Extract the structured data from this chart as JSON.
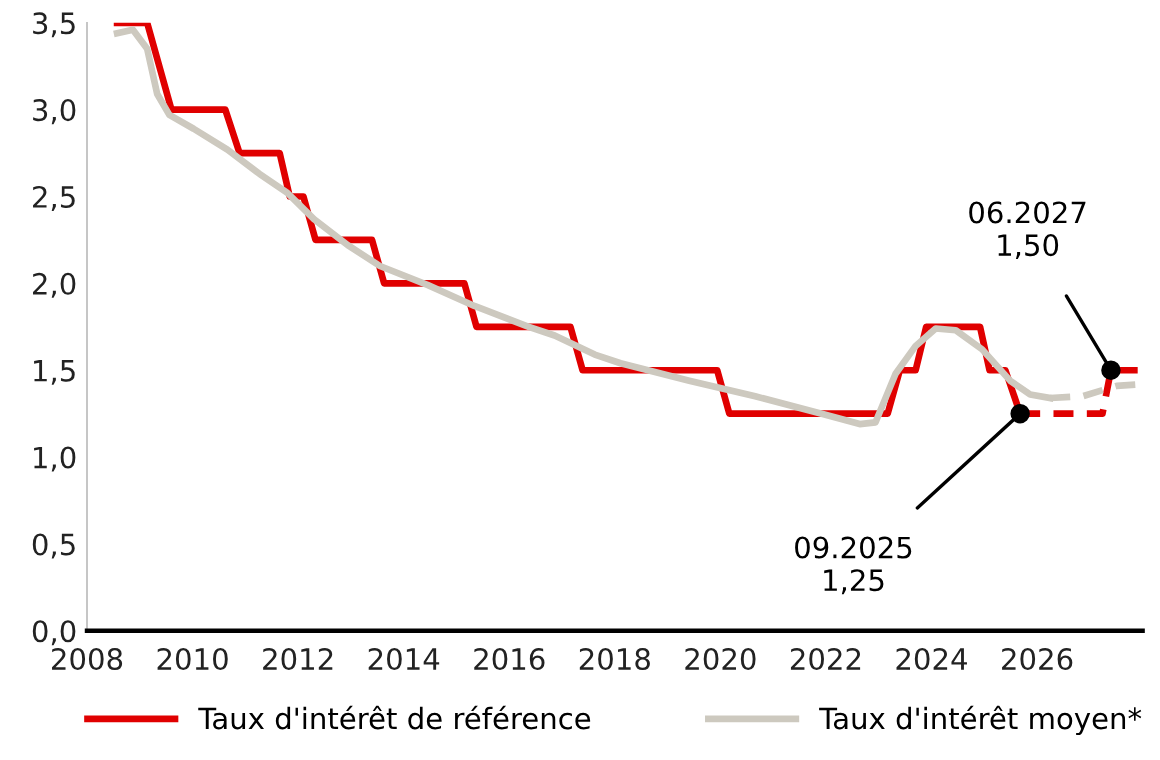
{
  "chart_data": {
    "type": "line",
    "series": [
      {
        "name": "Taux d'intérêt de référence",
        "color": "#e00000",
        "line_style": "solid",
        "x": [
          2008.57,
          2009.14,
          2009.6,
          2010.62,
          2010.89,
          2011.65,
          2011.84,
          2012.1,
          2012.33,
          2013.4,
          2013.63,
          2015.15,
          2015.38,
          2017.16,
          2017.39,
          2019.94,
          2020.17,
          2023.17,
          2023.4,
          2023.7,
          2023.9,
          2024.92,
          2025.1,
          2025.4,
          2025.68
        ],
        "values": [
          3.5,
          3.5,
          3.0,
          3.0,
          2.75,
          2.75,
          2.5,
          2.5,
          2.25,
          2.25,
          2.0,
          2.0,
          1.75,
          1.75,
          1.5,
          1.5,
          1.25,
          1.25,
          1.5,
          1.5,
          1.75,
          1.75,
          1.5,
          1.5,
          1.25
        ]
      },
      {
        "color": "#e00000",
        "line_style": "dashed",
        "x": [
          2025.68,
          2027.24,
          2027.4,
          2028.0
        ],
        "values": [
          1.25,
          1.25,
          1.5,
          1.5
        ]
      },
      {
        "name": "Taux d'intérêt moyen*",
        "color": "#cdc9bf",
        "line_style": "solid",
        "x": [
          2008.57,
          2008.87,
          2009.14,
          2009.33,
          2009.56,
          2010.02,
          2010.66,
          2011.27,
          2011.8,
          2012.3,
          2012.94,
          2013.55,
          2014.46,
          2015.34,
          2016.37,
          2016.86,
          2017.62,
          2018.11,
          2019.41,
          2020.66,
          2021.92,
          2022.64,
          2022.94,
          2023.32,
          2023.7,
          2024.08,
          2024.46,
          2024.96,
          2025.49,
          2025.87,
          2026.25
        ],
        "values": [
          3.44,
          3.46,
          3.35,
          3.09,
          2.97,
          2.89,
          2.77,
          2.63,
          2.52,
          2.37,
          2.22,
          2.1,
          1.99,
          1.87,
          1.75,
          1.7,
          1.59,
          1.54,
          1.44,
          1.35,
          1.25,
          1.19,
          1.2,
          1.48,
          1.64,
          1.74,
          1.73,
          1.62,
          1.44,
          1.36,
          1.34
        ]
      },
      {
        "color": "#cdc9bf",
        "line_style": "dashed",
        "x": [
          2026.25,
          2026.86,
          2027.51,
          2028.0
        ],
        "values": [
          1.34,
          1.35,
          1.41,
          1.42
        ]
      }
    ],
    "annotations": [
      {
        "text": "09.2025\n1,25",
        "x": 2025.68,
        "y": 1.25
      },
      {
        "text": "06.2027\n1,50",
        "x": 2027.4,
        "y": 1.5
      }
    ],
    "xlim": [
      2008,
      2028
    ],
    "xticks": [
      2008,
      2010,
      2012,
      2014,
      2016,
      2018,
      2020,
      2022,
      2024,
      2026
    ],
    "ylim": [
      0,
      3.5
    ],
    "yticks": [
      {
        "value": 0,
        "label": "0,0"
      },
      {
        "value": 0.5,
        "label": "0,5"
      },
      {
        "value": 1.0,
        "label": "1,0"
      },
      {
        "value": 1.5,
        "label": "1,5"
      },
      {
        "value": 2.0,
        "label": "2,0"
      },
      {
        "value": 2.5,
        "label": "2,5"
      },
      {
        "value": 3.0,
        "label": "3,0"
      },
      {
        "value": 3.5,
        "label": "3,5"
      }
    ],
    "grid": false,
    "legend": "bottom"
  }
}
